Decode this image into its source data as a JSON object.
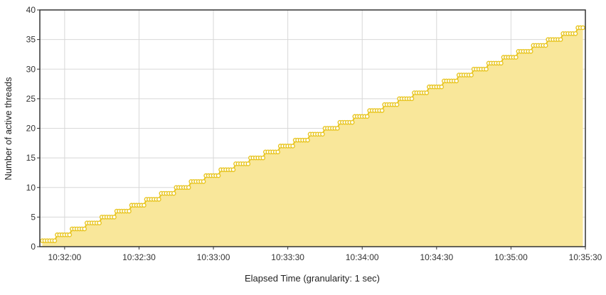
{
  "chart_data": {
    "type": "area",
    "title": "",
    "xlabel": "Elapsed Time (granularity: 1 sec)",
    "ylabel": "Number of active threads",
    "x_start": "10:31:51",
    "x_end": "10:35:29",
    "xlim": [
      "10:31:50",
      "10:35:30"
    ],
    "ylim": [
      0,
      40
    ],
    "yticks": [
      0,
      5,
      10,
      15,
      20,
      25,
      30,
      35,
      40
    ],
    "xticks": [
      "10:32:00",
      "10:32:30",
      "10:33:00",
      "10:33:30",
      "10:34:00",
      "10:34:30",
      "10:35:00",
      "10:35:30"
    ],
    "step_seconds": 6,
    "y_start": 1,
    "y_end": 37,
    "grid": true,
    "legend": "none",
    "colors": {
      "line": "#e8c520",
      "fill": "#f9e79a",
      "marker_fill": "#ffffff",
      "frame": "#333333",
      "grid": "#d8d8d8"
    }
  }
}
